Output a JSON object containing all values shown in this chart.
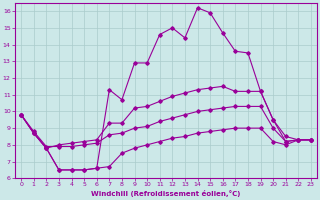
{
  "xlabel": "Windchill (Refroidissement éolien,°C)",
  "background_color": "#cce8e8",
  "grid_color": "#aacccc",
  "line_color": "#990099",
  "xlim": [
    -0.5,
    23.5
  ],
  "ylim": [
    6,
    16.5
  ],
  "xticks": [
    0,
    1,
    2,
    3,
    4,
    5,
    6,
    7,
    8,
    9,
    10,
    11,
    12,
    13,
    14,
    15,
    16,
    17,
    18,
    19,
    20,
    21,
    22,
    23
  ],
  "yticks": [
    6,
    7,
    8,
    9,
    10,
    11,
    12,
    13,
    14,
    15,
    16
  ],
  "series": [
    [
      9.8,
      8.7,
      7.8,
      6.5,
      6.5,
      6.5,
      6.6,
      11.3,
      10.7,
      12.9,
      12.9,
      14.6,
      15.0,
      14.4,
      16.2,
      15.9,
      14.7,
      13.6,
      13.5,
      11.2,
      9.5,
      8.2,
      8.3,
      8.3
    ],
    [
      9.8,
      8.7,
      7.8,
      8.0,
      8.1,
      8.2,
      8.3,
      9.3,
      9.3,
      10.2,
      10.3,
      10.6,
      10.9,
      11.1,
      11.3,
      11.4,
      11.5,
      11.2,
      11.2,
      11.2,
      9.5,
      8.5,
      8.3,
      8.3
    ],
    [
      9.8,
      8.8,
      7.9,
      7.9,
      7.9,
      8.0,
      8.1,
      8.6,
      8.7,
      9.0,
      9.1,
      9.4,
      9.6,
      9.8,
      10.0,
      10.1,
      10.2,
      10.3,
      10.3,
      10.3,
      9.0,
      8.2,
      8.3,
      8.3
    ],
    [
      9.8,
      8.7,
      7.8,
      6.5,
      6.5,
      6.5,
      6.6,
      6.7,
      7.5,
      7.8,
      8.0,
      8.2,
      8.4,
      8.5,
      8.7,
      8.8,
      8.9,
      9.0,
      9.0,
      9.0,
      8.2,
      8.0,
      8.3,
      8.3
    ]
  ]
}
